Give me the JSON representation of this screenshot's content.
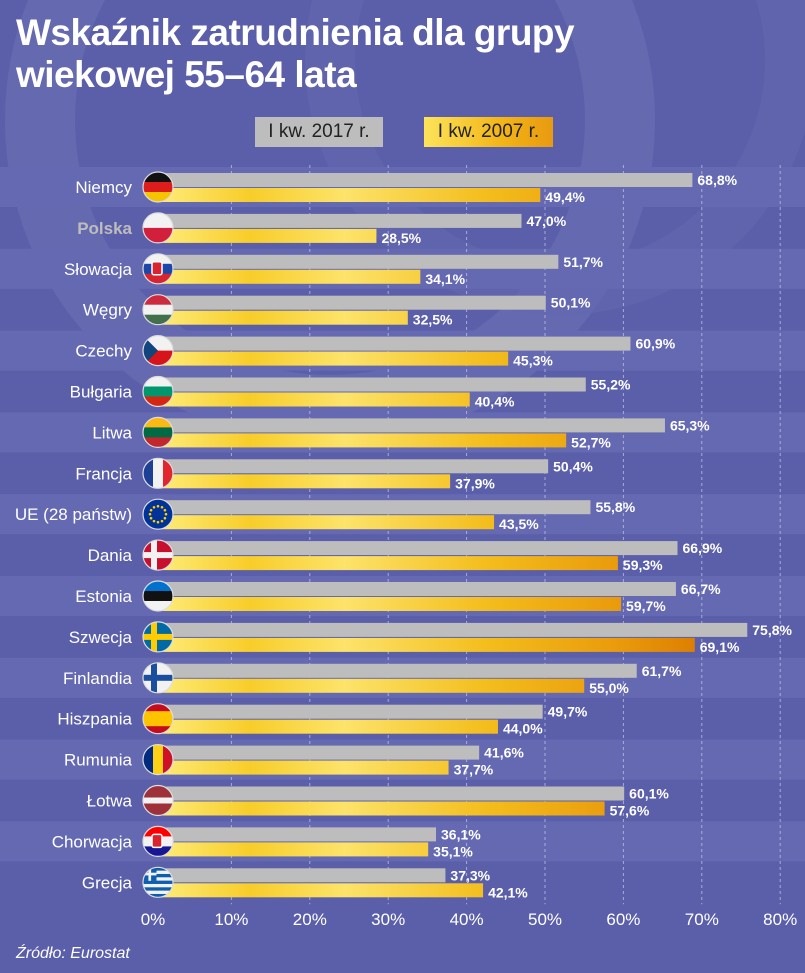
{
  "title_line1": "Wskaźnik zatrudnienia dla grupy",
  "title_line2": "wiekowej 55–64 lata",
  "source": "Źródło: Eurostat",
  "colors": {
    "background": "#5b5fa9",
    "band": "#6569b2",
    "series_2017": "#bdbdbd",
    "series_2007_light": "#fde870",
    "series_2007_dark": "#de8000",
    "highlight_label": "#bdbdbd"
  },
  "chart_data": {
    "type": "bar",
    "orientation": "horizontal",
    "categories": [
      "Niemcy",
      "Polska",
      "Słowacja",
      "Węgry",
      "Czechy",
      "Bułgaria",
      "Litwa",
      "Francja",
      "UE (28 państw)",
      "Dania",
      "Estonia",
      "Szwecja",
      "Finlandia",
      "Hiszpania",
      "Rumunia",
      "Łotwa",
      "Chorwacja",
      "Grecja"
    ],
    "flags": [
      "flag-germany-icon",
      "flag-poland-icon",
      "flag-slovakia-icon",
      "flag-hungary-icon",
      "flag-czechia-icon",
      "flag-bulgaria-icon",
      "flag-lithuania-icon",
      "flag-france-icon",
      "flag-eu-icon",
      "flag-denmark-icon",
      "flag-estonia-icon",
      "flag-sweden-icon",
      "flag-finland-icon",
      "flag-spain-icon",
      "flag-romania-icon",
      "flag-latvia-icon",
      "flag-croatia-icon",
      "flag-greece-icon"
    ],
    "highlighted_category": "Polska",
    "series": [
      {
        "name": "I kw. 2017 r.",
        "values": [
          68.8,
          47.0,
          51.7,
          50.1,
          60.9,
          55.2,
          65.3,
          50.4,
          55.8,
          66.9,
          66.7,
          75.8,
          61.7,
          49.7,
          41.6,
          60.1,
          36.1,
          37.3
        ],
        "labels": [
          "68,8%",
          "47,0%",
          "51,7%",
          "50,1%",
          "60,9%",
          "55,2%",
          "65,3%",
          "50,4%",
          "55,8%",
          "66,9%",
          "66,7%",
          "75,8%",
          "61,7%",
          "49,7%",
          "41,6%",
          "60,1%",
          "36,1%",
          "37,3%"
        ]
      },
      {
        "name": "I kw. 2007 r.",
        "values": [
          49.4,
          28.5,
          34.1,
          32.5,
          45.3,
          40.4,
          52.7,
          37.9,
          43.5,
          59.3,
          59.7,
          69.1,
          55.0,
          44.0,
          37.7,
          57.6,
          35.1,
          42.1
        ],
        "labels": [
          "49,4%",
          "28,5%",
          "34,1%",
          "32,5%",
          "45,3%",
          "40,4%",
          "52,7%",
          "37,9%",
          "43,5%",
          "59,3%",
          "59,7%",
          "69,1%",
          "55,0%",
          "44,0%",
          "37,7%",
          "57,6%",
          "35,1%",
          "42,1%"
        ]
      }
    ],
    "xlim": [
      0,
      80
    ],
    "x_ticks": [
      "0%",
      "10%",
      "20%",
      "30%",
      "40%",
      "50%",
      "60%",
      "70%",
      "80%"
    ],
    "grid": "vertical dashed",
    "legend": "top"
  }
}
